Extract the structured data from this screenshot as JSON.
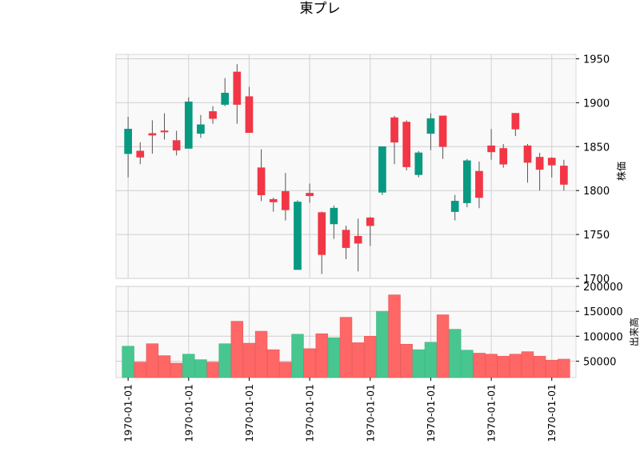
{
  "chart_data": [
    {
      "type": "candlestick",
      "title": "東プレ",
      "ylabel": "株価",
      "ylim": [
        1700,
        1955
      ],
      "yticks": [
        "1700",
        "1750",
        "1800",
        "1850",
        "1900",
        "1950"
      ],
      "grid": true,
      "colors": {
        "up": "#f23645",
        "down": "#089981"
      },
      "candles": [
        {
          "open": 1870,
          "high": 1884,
          "low": 1815,
          "close": 1842
        },
        {
          "open": 1838,
          "high": 1855,
          "low": 1830,
          "close": 1845
        },
        {
          "open": 1863,
          "high": 1880,
          "low": 1842,
          "close": 1865
        },
        {
          "open": 1867,
          "high": 1888,
          "low": 1858,
          "close": 1868
        },
        {
          "open": 1846,
          "high": 1868,
          "low": 1840,
          "close": 1857
        },
        {
          "open": 1901,
          "high": 1906,
          "low": 1848,
          "close": 1848
        },
        {
          "open": 1875,
          "high": 1886,
          "low": 1860,
          "close": 1865
        },
        {
          "open": 1882,
          "high": 1896,
          "low": 1876,
          "close": 1890
        },
        {
          "open": 1911,
          "high": 1928,
          "low": 1896,
          "close": 1898
        },
        {
          "open": 1898,
          "high": 1944,
          "low": 1876,
          "close": 1935
        },
        {
          "open": 1866,
          "high": 1918,
          "low": 1866,
          "close": 1907
        },
        {
          "open": 1795,
          "high": 1847,
          "low": 1788,
          "close": 1826
        },
        {
          "open": 1787,
          "high": 1792,
          "low": 1776,
          "close": 1790
        },
        {
          "open": 1778,
          "high": 1820,
          "low": 1766,
          "close": 1799
        },
        {
          "open": 1787,
          "high": 1789,
          "low": 1710,
          "close": 1710
        },
        {
          "open": 1794,
          "high": 1808,
          "low": 1786,
          "close": 1797
        },
        {
          "open": 1727,
          "high": 1776,
          "low": 1705,
          "close": 1775
        },
        {
          "open": 1780,
          "high": 1783,
          "low": 1745,
          "close": 1762
        },
        {
          "open": 1735,
          "high": 1760,
          "low": 1722,
          "close": 1755
        },
        {
          "open": 1740,
          "high": 1768,
          "low": 1708,
          "close": 1748
        },
        {
          "open": 1760,
          "high": 1770,
          "low": 1737,
          "close": 1769
        },
        {
          "open": 1850,
          "high": 1850,
          "low": 1795,
          "close": 1798
        },
        {
          "open": 1855,
          "high": 1885,
          "low": 1830,
          "close": 1883
        },
        {
          "open": 1827,
          "high": 1880,
          "low": 1823,
          "close": 1878
        },
        {
          "open": 1843,
          "high": 1845,
          "low": 1815,
          "close": 1818
        },
        {
          "open": 1882,
          "high": 1888,
          "low": 1846,
          "close": 1865
        },
        {
          "open": 1850,
          "high": 1885,
          "low": 1836,
          "close": 1885
        },
        {
          "open": 1788,
          "high": 1795,
          "low": 1766,
          "close": 1776
        },
        {
          "open": 1834,
          "high": 1836,
          "low": 1781,
          "close": 1786
        },
        {
          "open": 1792,
          "high": 1833,
          "low": 1780,
          "close": 1822
        },
        {
          "open": 1844,
          "high": 1870,
          "low": 1835,
          "close": 1851
        },
        {
          "open": 1830,
          "high": 1853,
          "low": 1826,
          "close": 1848
        },
        {
          "open": 1870,
          "high": 1888,
          "low": 1862,
          "close": 1888
        },
        {
          "open": 1832,
          "high": 1853,
          "low": 1809,
          "close": 1851
        },
        {
          "open": 1824,
          "high": 1843,
          "low": 1800,
          "close": 1838
        },
        {
          "open": 1829,
          "high": 1838,
          "low": 1815,
          "close": 1837
        },
        {
          "open": 1807,
          "high": 1835,
          "low": 1800,
          "close": 1828
        }
      ]
    },
    {
      "type": "bar",
      "ylabel": "出来高",
      "ylim": [
        17000,
        200000
      ],
      "yticks": [
        "50000",
        "100000",
        "150000",
        "200000"
      ],
      "grid": true,
      "xtick_labels": [
        "1970-01-01",
        "1970-01-01",
        "1970-01-01",
        "1970-01-01",
        "1970-01-01",
        "1970-01-01",
        "1970-01-01",
        "1970-01-01"
      ],
      "colors": {
        "up": "#ff6666",
        "down": "#47c690"
      },
      "volumes": [
        80000,
        48000,
        85000,
        61000,
        46000,
        64000,
        53000,
        48000,
        85000,
        130000,
        86000,
        110000,
        73000,
        48000,
        104000,
        75000,
        105000,
        97000,
        138000,
        87000,
        100000,
        150000,
        183000,
        84000,
        73000,
        88000,
        143000,
        114000,
        72000,
        66000,
        64000,
        60000,
        64000,
        69000,
        60000,
        52000,
        54000
      ]
    }
  ]
}
